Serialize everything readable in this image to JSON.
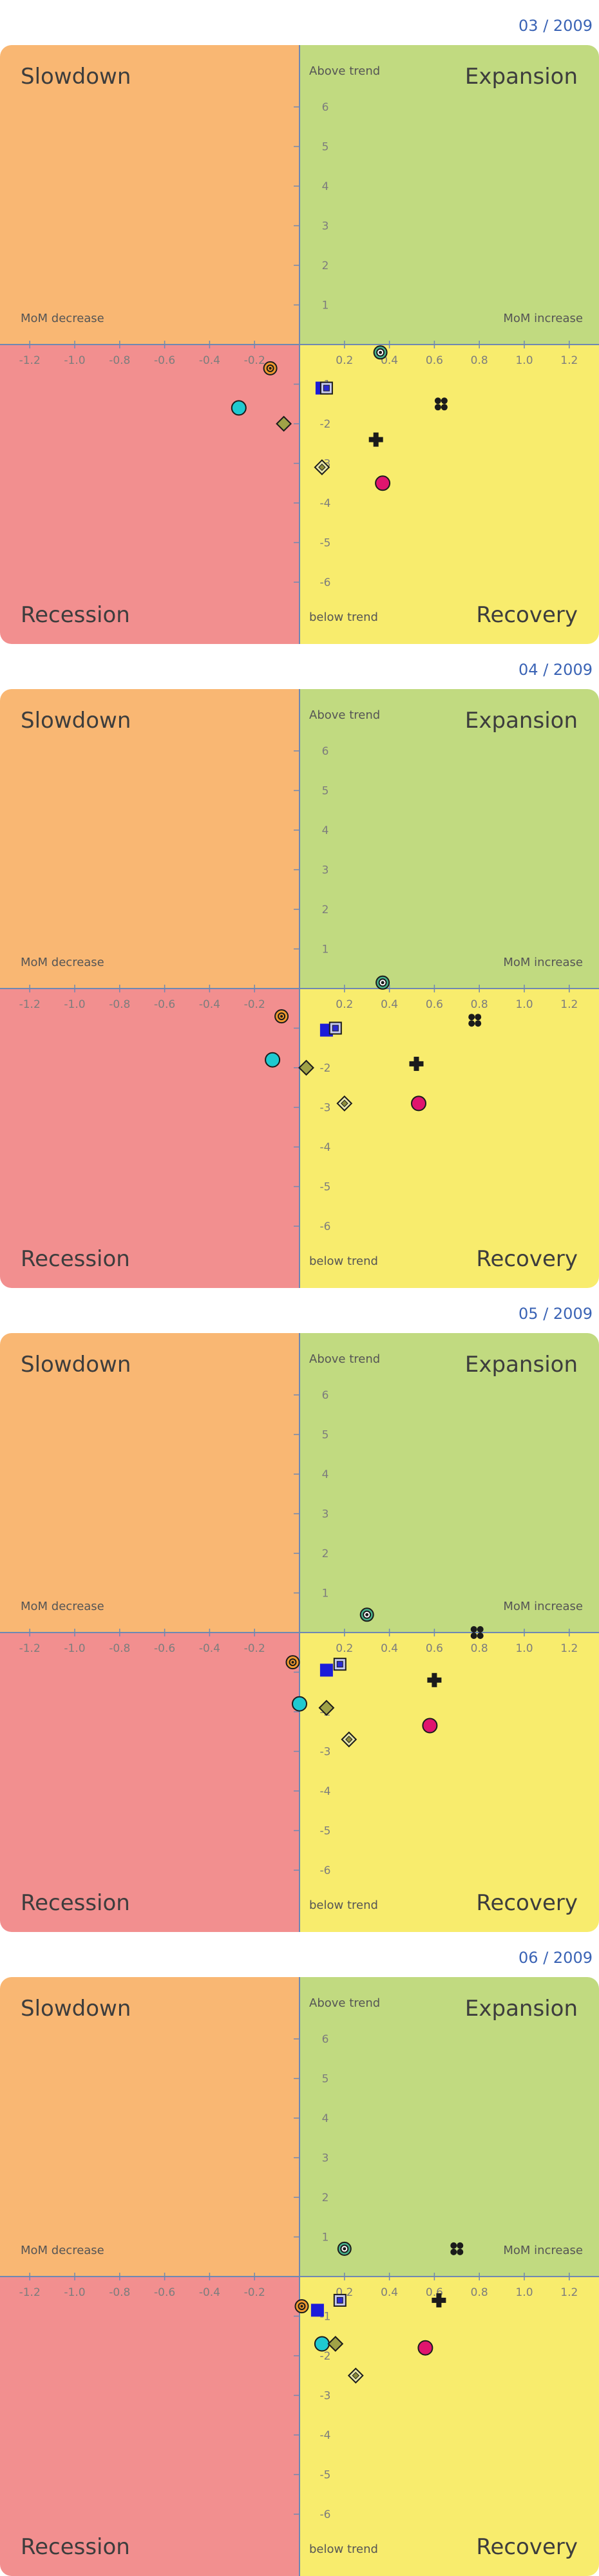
{
  "colors": {
    "slowdown": "#f9b773",
    "expansion": "#c1da80",
    "recession": "#f28f8f",
    "recovery": "#f8ec6d",
    "axis": "#6f88b2",
    "date": "#3a63b5"
  },
  "labels": {
    "top_left": "Slowdown",
    "top_right": "Expansion",
    "bottom_left": "Recession",
    "bottom_right": "Recovery",
    "above_trend": "Above trend",
    "below_trend": "below trend",
    "mom_decrease": "MoM decrease",
    "mom_increase": "MoM increase"
  },
  "chart_data": [
    {
      "type": "scatter",
      "date": "03 / 2009",
      "xlim": [
        -1.33,
        1.33
      ],
      "ylim": [
        -7.5,
        7.5
      ],
      "x_ticks": [
        "-1.2",
        "-1.0",
        "-0.8",
        "-0.6",
        "-0.4",
        "-0.2",
        "0.2",
        "0.4",
        "0.6",
        "0.8",
        "1.0",
        "1.2"
      ],
      "y_ticks": [
        "6",
        "5",
        "4",
        "3",
        "2",
        "1",
        "-1",
        "-2",
        "-3",
        "-4",
        "-5",
        "-6"
      ],
      "points": [
        {
          "marker": "ring-orange",
          "x": -0.13,
          "y": -0.6
        },
        {
          "marker": "ring-teal",
          "x": 0.36,
          "y": -0.2
        },
        {
          "marker": "square-blue",
          "x": 0.1,
          "y": -1.1
        },
        {
          "marker": "square-framed",
          "x": 0.12,
          "y": -1.1
        },
        {
          "marker": "circle-cyan",
          "x": -0.27,
          "y": -1.6
        },
        {
          "marker": "diamond-olive",
          "x": -0.07,
          "y": -2.0
        },
        {
          "marker": "quad-dots",
          "x": 0.63,
          "y": -1.5
        },
        {
          "marker": "cross-black",
          "x": 0.34,
          "y": -2.4
        },
        {
          "marker": "diamond-framed",
          "x": 0.1,
          "y": -3.1
        },
        {
          "marker": "circle-pink",
          "x": 0.37,
          "y": -3.5
        }
      ]
    },
    {
      "type": "scatter",
      "date": "04 / 2009",
      "xlim": [
        -1.33,
        1.33
      ],
      "ylim": [
        -7.5,
        7.5
      ],
      "x_ticks": [
        "-1.2",
        "-1.0",
        "-0.8",
        "-0.6",
        "-0.4",
        "-0.2",
        "0.2",
        "0.4",
        "0.6",
        "0.8",
        "1.0",
        "1.2"
      ],
      "y_ticks": [
        "6",
        "5",
        "4",
        "3",
        "2",
        "1",
        "-1",
        "-2",
        "-3",
        "-4",
        "-5",
        "-6"
      ],
      "points": [
        {
          "marker": "ring-orange",
          "x": -0.08,
          "y": -0.7
        },
        {
          "marker": "ring-teal",
          "x": 0.37,
          "y": 0.15
        },
        {
          "marker": "square-blue",
          "x": 0.12,
          "y": -1.05
        },
        {
          "marker": "square-framed",
          "x": 0.16,
          "y": -1.0
        },
        {
          "marker": "circle-cyan",
          "x": -0.12,
          "y": -1.8
        },
        {
          "marker": "diamond-olive",
          "x": 0.03,
          "y": -2.0
        },
        {
          "marker": "quad-dots",
          "x": 0.78,
          "y": -0.8
        },
        {
          "marker": "cross-black",
          "x": 0.52,
          "y": -1.9
        },
        {
          "marker": "diamond-framed",
          "x": 0.2,
          "y": -2.9
        },
        {
          "marker": "circle-pink",
          "x": 0.53,
          "y": -2.9
        }
      ]
    },
    {
      "type": "scatter",
      "date": "05 / 2009",
      "xlim": [
        -1.33,
        1.33
      ],
      "ylim": [
        -7.5,
        7.5
      ],
      "x_ticks": [
        "-1.2",
        "-1.0",
        "-0.8",
        "-0.6",
        "-0.4",
        "-0.2",
        "0.2",
        "0.4",
        "0.6",
        "0.8",
        "1.0",
        "1.2"
      ],
      "y_ticks": [
        "6",
        "5",
        "4",
        "3",
        "2",
        "1",
        "-1",
        "-2",
        "-3",
        "-4",
        "-5",
        "-6"
      ],
      "points": [
        {
          "marker": "ring-orange",
          "x": -0.03,
          "y": -0.75
        },
        {
          "marker": "ring-teal",
          "x": 0.3,
          "y": 0.45
        },
        {
          "marker": "square-blue",
          "x": 0.12,
          "y": -0.95
        },
        {
          "marker": "square-framed",
          "x": 0.18,
          "y": -0.8
        },
        {
          "marker": "circle-cyan",
          "x": 0.0,
          "y": -1.8
        },
        {
          "marker": "diamond-olive",
          "x": 0.12,
          "y": -1.9
        },
        {
          "marker": "quad-dots",
          "x": 0.79,
          "y": 0.0
        },
        {
          "marker": "cross-black",
          "x": 0.6,
          "y": -1.2
        },
        {
          "marker": "diamond-framed",
          "x": 0.22,
          "y": -2.7
        },
        {
          "marker": "circle-pink",
          "x": 0.58,
          "y": -2.35
        }
      ]
    },
    {
      "type": "scatter",
      "date": "06 / 2009",
      "xlim": [
        -1.33,
        1.33
      ],
      "ylim": [
        -7.5,
        7.5
      ],
      "x_ticks": [
        "-1.2",
        "-1.0",
        "-0.8",
        "-0.6",
        "-0.4",
        "-0.2",
        "0.2",
        "0.4",
        "0.6",
        "0.8",
        "1.0",
        "1.2"
      ],
      "y_ticks": [
        "6",
        "5",
        "4",
        "3",
        "2",
        "1",
        "-1",
        "-2",
        "-3",
        "-4",
        "-5",
        "-6"
      ],
      "points": [
        {
          "marker": "ring-orange",
          "x": 0.01,
          "y": -0.75
        },
        {
          "marker": "ring-teal",
          "x": 0.2,
          "y": 0.7
        },
        {
          "marker": "square-blue",
          "x": 0.08,
          "y": -0.85
        },
        {
          "marker": "square-framed",
          "x": 0.18,
          "y": -0.6
        },
        {
          "marker": "circle-cyan",
          "x": 0.1,
          "y": -1.7
        },
        {
          "marker": "diamond-olive",
          "x": 0.16,
          "y": -1.7
        },
        {
          "marker": "quad-dots",
          "x": 0.7,
          "y": 0.7
        },
        {
          "marker": "cross-black",
          "x": 0.62,
          "y": -0.6
        },
        {
          "marker": "diamond-framed",
          "x": 0.25,
          "y": -2.5
        },
        {
          "marker": "circle-pink",
          "x": 0.56,
          "y": -1.8
        }
      ]
    }
  ]
}
